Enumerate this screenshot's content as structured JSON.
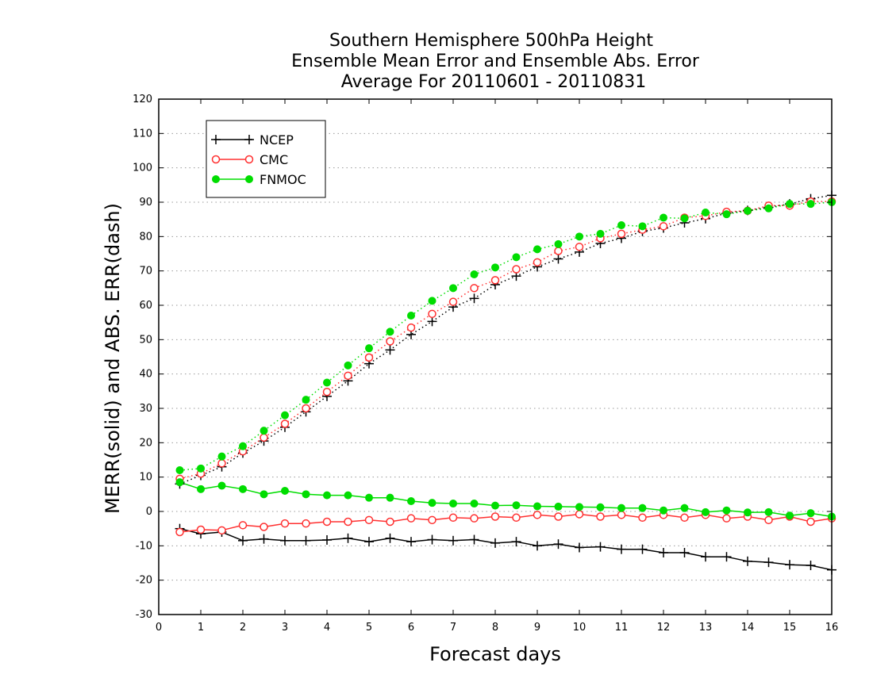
{
  "chart_data": {
    "type": "line",
    "title": [
      "Southern Hemisphere 500hPa Height",
      "Ensemble Mean Error and Ensemble Abs. Error",
      "Average For 20110601 - 20110831"
    ],
    "xlabel": "Forecast days",
    "ylabel": "MERR(solid) and ABS. ERR(dash)",
    "xlim": [
      0,
      16
    ],
    "ylim": [
      -30,
      120
    ],
    "x_ticks": [
      0,
      1,
      2,
      3,
      4,
      5,
      6,
      7,
      8,
      9,
      10,
      11,
      12,
      13,
      14,
      15,
      16
    ],
    "y_ticks": [
      -30,
      -20,
      -10,
      0,
      10,
      20,
      30,
      40,
      50,
      60,
      70,
      80,
      90,
      100,
      110,
      120
    ],
    "grid": "horizontal dotted",
    "legend_position": "top-left",
    "x": [
      0.5,
      1,
      1.5,
      2,
      2.5,
      3,
      3.5,
      4,
      4.5,
      5,
      5.5,
      6,
      6.5,
      7,
      7.5,
      8,
      8.5,
      9,
      9.5,
      10,
      10.5,
      11,
      11.5,
      12,
      12.5,
      13,
      13.5,
      14,
      14.5,
      15,
      15.5,
      16
    ],
    "series": [
      {
        "name": "NCEP",
        "color": "#000000",
        "marker": "plus",
        "merr": [
          -5,
          -6.5,
          -6,
          -8.5,
          -8,
          -8.5,
          -8.5,
          -8.3,
          -7.8,
          -8.8,
          -7.8,
          -8.8,
          -8.2,
          -8.5,
          -8.2,
          -9.2,
          -8.8,
          -10,
          -9.5,
          -10.5,
          -10.3,
          -11,
          -11,
          -12,
          -12,
          -13.2,
          -13.2,
          -14.5,
          -14.8,
          -15.5,
          -15.7,
          -17
        ],
        "abs_err": [
          8,
          10.5,
          13,
          17,
          20.5,
          24.5,
          29,
          33.5,
          38,
          43,
          47,
          51.5,
          55.3,
          59.5,
          62,
          66,
          68.5,
          71.2,
          73.5,
          75.5,
          78,
          79.5,
          81.5,
          82.5,
          84,
          85.2,
          86.8,
          87.6,
          88.5,
          89.5,
          91,
          92
        ]
      },
      {
        "name": "CMC",
        "color": "#ff3030",
        "marker": "open-circle",
        "merr": [
          -6,
          -5.3,
          -5.5,
          -4,
          -4.5,
          -3.5,
          -3.5,
          -3,
          -3,
          -2.5,
          -3,
          -2,
          -2.5,
          -1.8,
          -2,
          -1.5,
          -1.8,
          -1,
          -1.5,
          -0.8,
          -1.5,
          -1,
          -1.8,
          -1,
          -1.8,
          -1,
          -2,
          -1.5,
          -2.5,
          -1.5,
          -3,
          -2
        ],
        "abs_err": [
          9.5,
          11,
          14,
          17.5,
          21.5,
          25.5,
          30,
          34.8,
          39.5,
          44.8,
          49.5,
          53.5,
          57.5,
          61,
          65,
          67.3,
          70.5,
          72.5,
          75.8,
          77,
          79.5,
          80.8,
          82,
          83,
          85.5,
          86,
          87.2,
          87.5,
          89,
          89,
          90.2,
          90.2
        ]
      },
      {
        "name": "FNMOC",
        "color": "#00dd00",
        "marker": "filled-circle",
        "merr": [
          8.5,
          6.5,
          7.5,
          6.5,
          5,
          6,
          5,
          4.7,
          4.7,
          4,
          4,
          3,
          2.5,
          2.3,
          2.3,
          1.7,
          1.8,
          1.5,
          1.4,
          1.3,
          1.2,
          1,
          1,
          0.3,
          1,
          -0.2,
          0.3,
          -0.3,
          -0.2,
          -1.2,
          -0.5,
          -1.5
        ],
        "abs_err": [
          12,
          12.5,
          16,
          19,
          23.5,
          28,
          32.5,
          37.5,
          42.5,
          47.5,
          52.3,
          57,
          61.3,
          65,
          69,
          71,
          74,
          76.3,
          77.8,
          80,
          80.8,
          83.3,
          83,
          85.5,
          85.3,
          87,
          86.5,
          87.5,
          88.2,
          89.5,
          89.5,
          90
        ]
      }
    ]
  }
}
